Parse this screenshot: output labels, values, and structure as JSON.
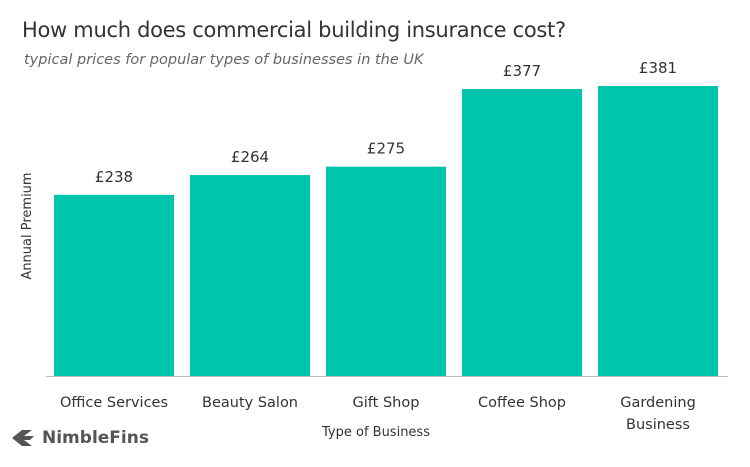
{
  "chart_data": {
    "type": "bar",
    "title": "How much does commercial building insurance cost?",
    "subtitle": "typical prices for popular types of businesses in the UK",
    "xlabel": "Type of Business",
    "ylabel": "Annual Premium",
    "categories": [
      [
        "Office Services"
      ],
      [
        "Beauty Salon"
      ],
      [
        "Gift Shop"
      ],
      [
        "Coffee Shop"
      ],
      [
        "Gardening",
        "Business"
      ]
    ],
    "values": [
      238,
      264,
      275,
      377,
      381
    ],
    "data_labels": [
      "£238",
      "£264",
      "£275",
      "£377",
      "£381"
    ],
    "ylim": [
      0,
      381
    ],
    "grid": false,
    "bar_color": "#00C4AD"
  },
  "logo": {
    "text": "NimbleFins"
  }
}
